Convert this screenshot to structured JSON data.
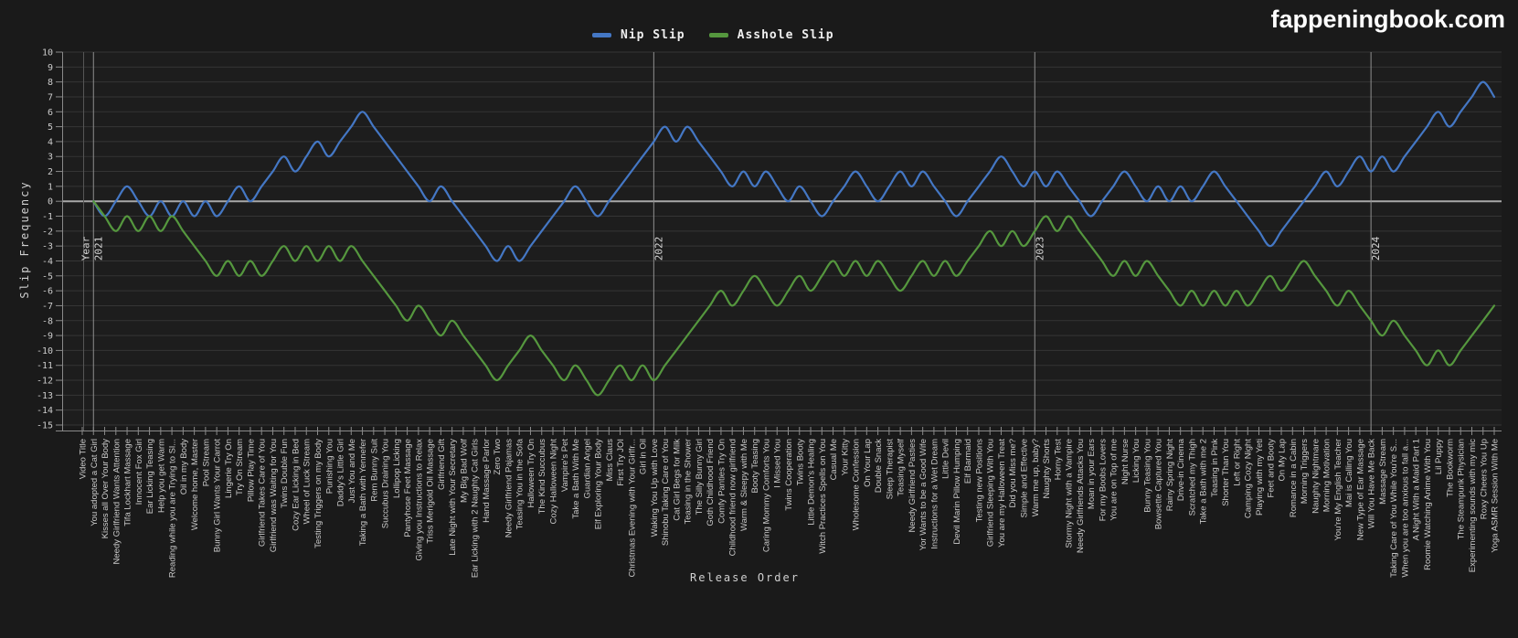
{
  "page": {
    "logo_text": "fappeningbook.com",
    "background": "#1a1a1a"
  },
  "legend": {
    "items": [
      {
        "label": "Nip Slip",
        "color": "#4477c4"
      },
      {
        "label": "Asshole Slip",
        "color": "#55973e"
      }
    ]
  },
  "chart_data": {
    "type": "line",
    "title": "",
    "xlabel": "Release Order",
    "ylabel": "Slip Frequency",
    "ylim": [
      -15,
      10
    ],
    "y_tick_step": 1,
    "grid": true,
    "legend_position": "top-center",
    "zero_line_color": "#a8a8a8",
    "grid_color": "#353535",
    "year_marker_color": "#8f8f8f",
    "axis_color": "#8a8a8a",
    "tick_text_color": "#cccccc",
    "year_axis_title": "Year",
    "year_markers": [
      {
        "label": "2021",
        "category_index": 1
      },
      {
        "label": "2022",
        "category_index": 51
      },
      {
        "label": "2023",
        "category_index": 85
      },
      {
        "label": "2024",
        "category_index": 115
      }
    ],
    "categories": [
      "Video Title",
      "You adopted a Cat Girl",
      "Kisses all Over Your Body",
      "Needy Girlfriend Wants Attention",
      "Tifa Lockhart Massage",
      "Innocent Fox Girl",
      "Ear Licking Teasing",
      "Help you get Warm",
      "Reading while you are Trying to Sl...",
      "Oil in my Body",
      "Welcome home, Master",
      "Pool Stream",
      "Bunny Girl Wants Your Carrot",
      "Lingerie Try On",
      "Try On Stream",
      "Pillow Play Time",
      "Girlfriend Takes Care of You",
      "Girlfriend was Waiting for You",
      "Twins Double Fun",
      "Cozy Ear Licking in Bed",
      "Wheel of Luck Stream",
      "Testing Triggers on my Body",
      "Punishing You",
      "Daddy's Little Girl",
      "Just You and Me",
      "Taking a Bath with Yennefer",
      "Rem Bunny Suit",
      "Succubus Draining You",
      "Lollipop Licking",
      "Pantyhose Feet Massage",
      "Giving you Instructions to Relax",
      "Triss Merigold Oil Massage",
      "Girlfriend Gift",
      "Late Night with Your Secretary",
      "My Big Bad Wolf",
      "Ear Licking with 2 Naughty Cat Girls",
      "Hand Massage Parlor",
      "Zero Two",
      "Needy Girlfriend Pajamas",
      "Teasing You in the Sofa",
      "Halloween Try On",
      "The Kind Succubus",
      "Cozy Halloween Night",
      "Vampire's Pet",
      "Take a Bath With Me",
      "Guardian Angel",
      "Elf Exploring Your Body",
      "Miss Claus",
      "First Try JOI",
      "Christmas Evening with Your Girlfr...",
      "Girl in Oil",
      "Waking You Up with Love",
      "Shinobu Taking Care of You",
      "Cat Girl Begs for Milk",
      "Teasing in the Shower",
      "The Silly Bunny Girl",
      "Goth Childhood Friend",
      "Comfy Panties Try On",
      "Childhood friend now girlfriend",
      "Warm & Sleepy with Me",
      "Booty Teasing",
      "Caring Mommy Comforts You",
      "I Missed You",
      "Twins Cooperation",
      "Twins Booty",
      "Little Demon's Healing",
      "Witch Practices Spells on You",
      "Casual Me",
      "Your Kitty",
      "Wholesome Confession",
      "On Your Lap",
      "Double Snack",
      "Sleep Therapist",
      "Teasing Myself",
      "Needy Girlfriend Pasties",
      "Yor Wants to be a Good Wife",
      "Instructions for a Wet Dream",
      "Little Devil",
      "Devil Marin Pillow Humping",
      "Elf Barmaid",
      "Testing new Positions",
      "Girlfriend Sleeping With You",
      "You are my Halloween Treat",
      "Did you Miss me?",
      "Simple and Effective",
      "Warm me up, baby?",
      "Naughty Shorts",
      "Horny Test",
      "Stormy Night with a Vampire",
      "Needy Girlfriends Attacks You",
      "Moan in your Ears",
      "For my Boobs Lovers",
      "You are on Top of me",
      "Night Nurse",
      "Licking You",
      "Bunny Teasing You",
      "Bowsette Captured You",
      "Rainy Spring Night",
      "Drive-in Cinema",
      "Scratched my Thigh",
      "Take a Bath with me 2",
      "Teasing in Pink",
      "Shorter Than You",
      "Left or Right",
      "Camping Cozy Night",
      "Playing with my Yeti",
      "Feet and Booty",
      "On My Lap",
      "Romance in a Cabin",
      "Morning Triggers",
      "Naughty Nightmare",
      "Morning Motivation",
      "You're My English Teacher",
      "Mai is Calling You",
      "New Type of Ear Massage",
      "Will You Have Me Back",
      "Massage Stream",
      "Taking Care of You While You're S...",
      "When you are too anxious to fall a...",
      "A Night With a Maid Part 1",
      "Roomie Watching Anime With You",
      "Lil Puppy",
      "The Bookworm",
      "The Steampunk Physician",
      "Experimenting sounds with my mic",
      "Roxy Cheers You Up",
      "Yoga ASMR Session With Me"
    ],
    "series": [
      {
        "name": "Nip Slip",
        "color": "#4477c4",
        "values": [
          null,
          0,
          -1,
          0,
          1,
          0,
          -1,
          0,
          -1,
          0,
          -1,
          0,
          -1,
          0,
          1,
          0,
          1,
          2,
          3,
          2,
          3,
          4,
          3,
          4,
          5,
          6,
          5,
          4,
          3,
          2,
          1,
          0,
          1,
          0,
          -1,
          -2,
          -3,
          -4,
          -3,
          -4,
          -3,
          -2,
          -1,
          0,
          1,
          0,
          -1,
          0,
          1,
          2,
          3,
          4,
          5,
          4,
          5,
          4,
          3,
          2,
          1,
          2,
          1,
          2,
          1,
          0,
          1,
          0,
          -1,
          0,
          1,
          2,
          1,
          0,
          1,
          2,
          1,
          2,
          1,
          0,
          -1,
          0,
          1,
          2,
          3,
          2,
          1,
          2,
          1,
          2,
          1,
          0,
          -1,
          0,
          1,
          2,
          1,
          0,
          1,
          0,
          1,
          0,
          1,
          2,
          1,
          0,
          -1,
          -2,
          -3,
          -2,
          -1,
          0,
          1,
          2,
          1,
          2,
          3,
          2,
          3,
          2,
          3,
          4,
          5,
          6,
          5,
          6,
          7,
          8,
          7
        ]
      },
      {
        "name": "Asshole Slip",
        "color": "#55973e",
        "values": [
          null,
          0,
          -1,
          -2,
          -1,
          -2,
          -1,
          -2,
          -1,
          -2,
          -3,
          -4,
          -5,
          -4,
          -5,
          -4,
          -5,
          -4,
          -3,
          -4,
          -3,
          -4,
          -3,
          -4,
          -3,
          -4,
          -5,
          -6,
          -7,
          -8,
          -7,
          -8,
          -9,
          -8,
          -9,
          -10,
          -11,
          -12,
          -11,
          -10,
          -9,
          -10,
          -11,
          -12,
          -11,
          -12,
          -13,
          -12,
          -11,
          -12,
          -11,
          -12,
          -11,
          -10,
          -9,
          -8,
          -7,
          -6,
          -7,
          -6,
          -5,
          -6,
          -7,
          -6,
          -5,
          -6,
          -5,
          -4,
          -5,
          -4,
          -5,
          -4,
          -5,
          -6,
          -5,
          -4,
          -5,
          -4,
          -5,
          -4,
          -3,
          -2,
          -3,
          -2,
          -3,
          -2,
          -1,
          -2,
          -1,
          -2,
          -3,
          -4,
          -5,
          -4,
          -5,
          -4,
          -5,
          -6,
          -7,
          -6,
          -7,
          -6,
          -7,
          -6,
          -7,
          -6,
          -5,
          -6,
          -5,
          -4,
          -5,
          -6,
          -7,
          -6,
          -7,
          -8,
          -9,
          -8,
          -9,
          -10,
          -11,
          -10,
          -11,
          -10,
          -9,
          -8,
          -7
        ]
      }
    ]
  }
}
